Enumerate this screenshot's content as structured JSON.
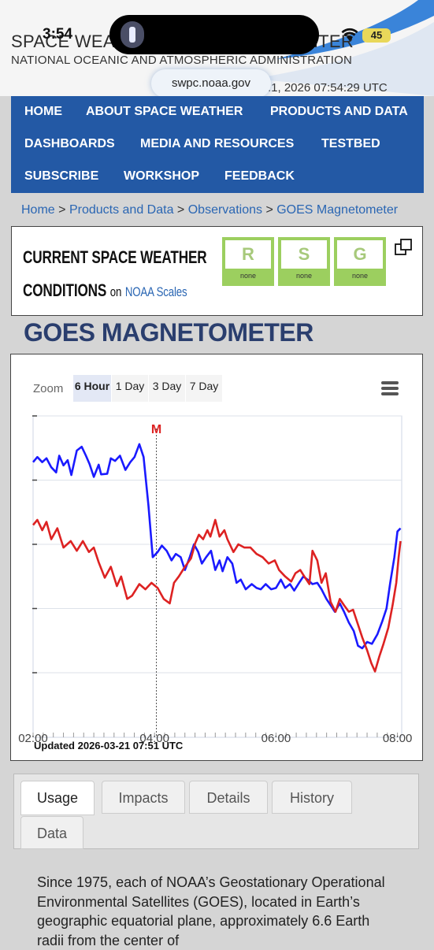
{
  "status_bar": {
    "time": "3:54",
    "battery": "45"
  },
  "browser": {
    "url": "swpc.noaa.gov"
  },
  "header": {
    "title": "SPACE WEATHER PREDICTION CENTER",
    "subtitle": "NATIONAL OCEANIC AND ATMOSPHERIC ADMINISTRATION",
    "utc_time": ".1, 2026 07:54:29 UTC"
  },
  "nav": {
    "rows": [
      [
        "HOME",
        "ABOUT SPACE WEATHER",
        "PRODUCTS AND DATA"
      ],
      [
        "DASHBOARDS",
        "MEDIA AND RESOURCES",
        "TESTBED"
      ],
      [
        "SUBSCRIBE",
        "WORKSHOP",
        "FEEDBACK"
      ]
    ]
  },
  "breadcrumb": {
    "items": [
      "Home",
      "Products and Data",
      "Observations",
      "GOES Magnetometer"
    ],
    "separator": ">"
  },
  "conditions": {
    "title_line1": "CURRENT SPACE WEATHER",
    "title_line2": "CONDITIONS",
    "on_text": "on",
    "link_text": "NOAA Scales",
    "scales": [
      {
        "letter": "R",
        "level": "none"
      },
      {
        "letter": "S",
        "level": "none"
      },
      {
        "letter": "G",
        "level": "none"
      }
    ]
  },
  "page_title": "GOES MAGNETOMETER",
  "chart": {
    "zoom_label": "Zoom",
    "zoom_options": [
      "6 Hour",
      "1 Day",
      "3 Day",
      "7 Day"
    ],
    "active_zoom": "6 Hour",
    "updated": "Updated 2026-03-21 07:51 UTC",
    "marker_label": "M"
  },
  "chart_data": {
    "type": "line",
    "x_ticks": [
      "02:00",
      "04:00",
      "06:00",
      "08:00"
    ],
    "xlim_hours": [
      2.0,
      8.07
    ],
    "marker_hour": 4.03,
    "grid": true,
    "series": [
      {
        "color": "#1a1aff",
        "points": [
          [
            2.0,
            0.72
          ],
          [
            2.07,
            0.64
          ],
          [
            2.15,
            0.72
          ],
          [
            2.22,
            0.66
          ],
          [
            2.3,
            0.8
          ],
          [
            2.38,
            0.88
          ],
          [
            2.43,
            0.62
          ],
          [
            2.5,
            0.77
          ],
          [
            2.57,
            0.69
          ],
          [
            2.63,
            0.92
          ],
          [
            2.72,
            0.54
          ],
          [
            2.8,
            0.48
          ],
          [
            2.87,
            0.62
          ],
          [
            2.93,
            0.75
          ],
          [
            3.0,
            0.95
          ],
          [
            3.08,
            0.76
          ],
          [
            3.12,
            0.91
          ],
          [
            3.22,
            0.9
          ],
          [
            3.28,
            0.66
          ],
          [
            3.35,
            0.7
          ],
          [
            3.43,
            0.62
          ],
          [
            3.52,
            0.84
          ],
          [
            3.6,
            0.72
          ],
          [
            3.67,
            0.64
          ],
          [
            3.75,
            0.44
          ],
          [
            3.82,
            0.64
          ],
          [
            3.9,
            1.4
          ],
          [
            3.97,
            2.2
          ],
          [
            4.05,
            2.12
          ],
          [
            4.12,
            2.02
          ],
          [
            4.2,
            2.1
          ],
          [
            4.28,
            2.25
          ],
          [
            4.35,
            2.15
          ],
          [
            4.43,
            2.2
          ],
          [
            4.5,
            2.4
          ],
          [
            4.58,
            2.2
          ],
          [
            4.65,
            2.0
          ],
          [
            4.72,
            2.12
          ],
          [
            4.78,
            2.3
          ],
          [
            4.85,
            2.2
          ],
          [
            4.93,
            2.1
          ],
          [
            5.0,
            2.4
          ],
          [
            5.07,
            2.25
          ],
          [
            5.12,
            2.42
          ],
          [
            5.2,
            2.2
          ],
          [
            5.28,
            2.3
          ],
          [
            5.35,
            2.6
          ],
          [
            5.42,
            2.55
          ],
          [
            5.5,
            2.7
          ],
          [
            5.6,
            2.62
          ],
          [
            5.68,
            2.68
          ],
          [
            5.75,
            2.7
          ],
          [
            5.83,
            2.62
          ],
          [
            5.92,
            2.7
          ],
          [
            6.0,
            2.68
          ],
          [
            6.08,
            2.55
          ],
          [
            6.15,
            2.68
          ],
          [
            6.23,
            2.62
          ],
          [
            6.3,
            2.72
          ],
          [
            6.38,
            2.6
          ],
          [
            6.45,
            2.5
          ],
          [
            6.52,
            2.55
          ],
          [
            6.6,
            2.62
          ],
          [
            6.68,
            2.6
          ],
          [
            6.75,
            2.7
          ],
          [
            6.83,
            2.85
          ],
          [
            6.9,
            2.95
          ],
          [
            6.97,
            3.05
          ],
          [
            7.05,
            2.92
          ],
          [
            7.12,
            3.05
          ],
          [
            7.2,
            3.22
          ],
          [
            7.28,
            3.35
          ],
          [
            7.35,
            3.58
          ],
          [
            7.42,
            3.62
          ],
          [
            7.5,
            3.52
          ],
          [
            7.58,
            3.55
          ],
          [
            7.67,
            3.4
          ],
          [
            7.75,
            3.2
          ],
          [
            7.82,
            3.0
          ],
          [
            7.88,
            2.6
          ],
          [
            7.95,
            2.2
          ],
          [
            8.0,
            1.8
          ],
          [
            8.05,
            1.75
          ]
        ]
      },
      {
        "color": "#dd2222",
        "points": [
          [
            2.0,
            1.7
          ],
          [
            2.07,
            1.62
          ],
          [
            2.15,
            1.78
          ],
          [
            2.22,
            1.65
          ],
          [
            2.3,
            1.92
          ],
          [
            2.4,
            1.75
          ],
          [
            2.5,
            2.05
          ],
          [
            2.62,
            1.95
          ],
          [
            2.72,
            2.1
          ],
          [
            2.82,
            1.95
          ],
          [
            2.92,
            2.12
          ],
          [
            3.0,
            2.05
          ],
          [
            3.08,
            2.28
          ],
          [
            3.18,
            2.52
          ],
          [
            3.28,
            2.35
          ],
          [
            3.38,
            2.65
          ],
          [
            3.45,
            2.5
          ],
          [
            3.55,
            2.85
          ],
          [
            3.63,
            2.8
          ],
          [
            3.75,
            2.62
          ],
          [
            3.85,
            2.7
          ],
          [
            3.95,
            2.6
          ],
          [
            4.05,
            2.68
          ],
          [
            4.15,
            2.85
          ],
          [
            4.25,
            2.92
          ],
          [
            4.32,
            2.6
          ],
          [
            4.4,
            2.5
          ],
          [
            4.5,
            2.35
          ],
          [
            4.6,
            2.22
          ],
          [
            4.67,
            1.98
          ],
          [
            4.73,
            1.85
          ],
          [
            4.8,
            1.92
          ],
          [
            4.87,
            1.78
          ],
          [
            4.92,
            1.88
          ],
          [
            5.0,
            1.62
          ],
          [
            5.07,
            1.88
          ],
          [
            5.15,
            1.78
          ],
          [
            5.2,
            1.92
          ],
          [
            5.3,
            2.12
          ],
          [
            5.38,
            2.0
          ],
          [
            5.48,
            2.05
          ],
          [
            5.58,
            2.05
          ],
          [
            5.68,
            2.15
          ],
          [
            5.78,
            2.2
          ],
          [
            5.88,
            2.3
          ],
          [
            5.98,
            2.25
          ],
          [
            6.05,
            2.4
          ],
          [
            6.15,
            2.5
          ],
          [
            6.25,
            2.58
          ],
          [
            6.32,
            2.45
          ],
          [
            6.4,
            2.4
          ],
          [
            6.48,
            2.52
          ],
          [
            6.55,
            2.62
          ],
          [
            6.6,
            2.1
          ],
          [
            6.68,
            2.25
          ],
          [
            6.75,
            2.6
          ],
          [
            6.82,
            2.45
          ],
          [
            6.9,
            2.9
          ],
          [
            6.98,
            3.05
          ],
          [
            7.05,
            2.85
          ],
          [
            7.12,
            2.95
          ],
          [
            7.2,
            3.05
          ],
          [
            7.27,
            3.02
          ],
          [
            7.35,
            3.25
          ],
          [
            7.42,
            3.45
          ],
          [
            7.5,
            3.65
          ],
          [
            7.57,
            3.85
          ],
          [
            7.63,
            3.98
          ],
          [
            7.7,
            3.75
          ],
          [
            7.77,
            3.55
          ],
          [
            7.85,
            3.3
          ],
          [
            7.92,
            2.95
          ],
          [
            7.98,
            2.6
          ],
          [
            8.02,
            2.2
          ],
          [
            8.05,
            1.95
          ]
        ]
      }
    ]
  },
  "tabs": {
    "items": [
      "Usage",
      "Impacts",
      "Details",
      "History",
      "Data"
    ],
    "active": "Usage"
  },
  "usage_text": "Since 1975, each of NOAA’s Geostationary Operational Environmental Satellites (GOES), located in Earth’s geographic equatorial plane, approximately 6.6 Earth radii from the center of"
}
